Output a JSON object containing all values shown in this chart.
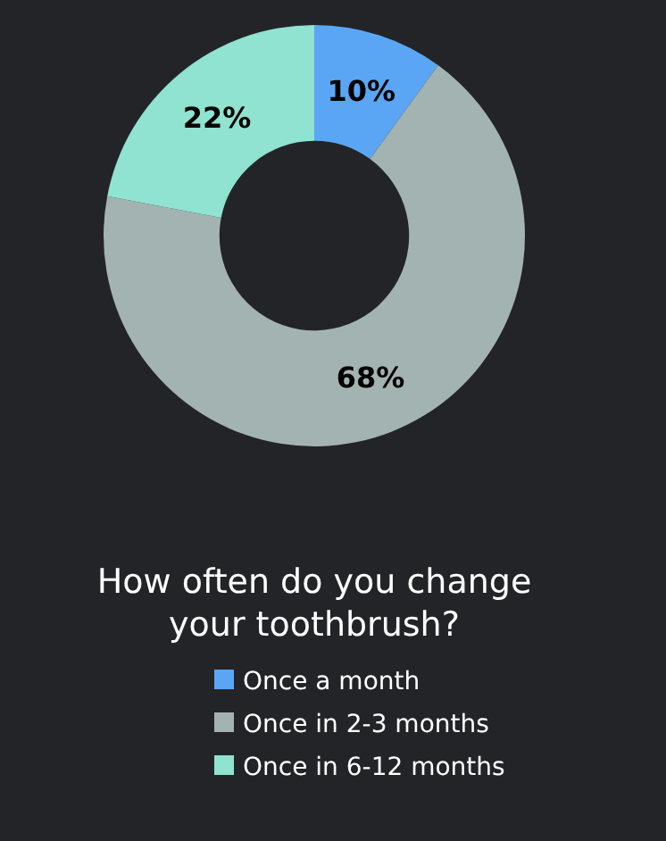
{
  "chart_data": {
    "type": "donut",
    "title": "How often do you change your toothbrush?",
    "categories": [
      "Once a month",
      "Once in 2-3 months",
      "Once in 6-12 months"
    ],
    "values": [
      10,
      68,
      22
    ],
    "colors": [
      "#5aa6f5",
      "#a3b3b1",
      "#8fe3d0"
    ],
    "value_labels": [
      "10%",
      "68%",
      "22%"
    ],
    "legend": "bottom"
  }
}
